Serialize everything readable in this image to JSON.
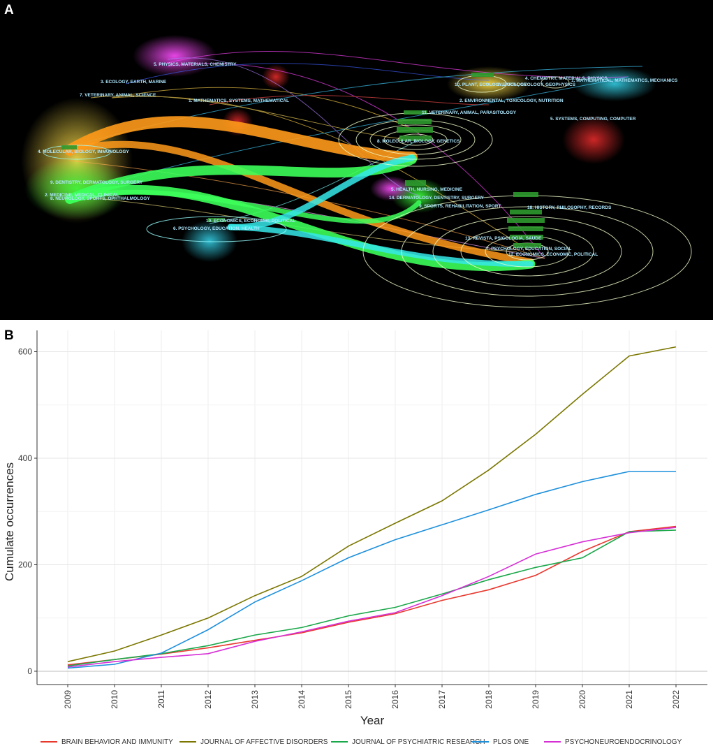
{
  "panel_a": {
    "letter": "A",
    "labels": [
      {
        "text": "5. PHYSICS, MATERIALS, CHEMISTRY",
        "color": "#aee8ff"
      },
      {
        "text": "3. ECOLOGY, EARTH, MARINE",
        "color": "#aee8ff"
      },
      {
        "text": "7. VETERINARY, ANIMAL, SCIENCE",
        "color": "#aee8ff"
      },
      {
        "text": "1. MATHEMATICS, SYSTEMS, MATHEMATICAL",
        "color": "#aee8ff"
      },
      {
        "text": "4. MOLECULAR, BIOLOGY, IMMUNOLOGY",
        "color": "#aee8ff"
      },
      {
        "text": "9. DENTISTRY, DERMATOLOGY, SURGERY",
        "color": "#aee8ff"
      },
      {
        "text": "2. MEDICINE, MEDICAL, CLINICAL",
        "color": "#aee8ff"
      },
      {
        "text": "8. NEUROLOGY, SPORTS, OPHTHALMOLOGY",
        "color": "#aee8ff"
      },
      {
        "text": "10. ECONOMICS, ECONOMIC, POLITICAL",
        "color": "#aee8ff"
      },
      {
        "text": "6. PSYCHOLOGY, EDUCATION, HEALTH",
        "color": "#aee8ff"
      },
      {
        "text": "4. CHEMISTRY, MATERIALS, PHYSICS",
        "color": "#aee8ff"
      },
      {
        "text": "10. PLANT, ECOLOGY, ZOOLOGY",
        "color": "#aee8ff"
      },
      {
        "text": "3. EARTH, GEOLOGY, GEOPHYSICS",
        "color": "#aee8ff"
      },
      {
        "text": "1. MATHEMATICAL, MATHEMATICS, MECHANICS",
        "color": "#aee8ff"
      },
      {
        "text": "2. ENVIRONMENTAL, TOXICOLOGY, NUTRITION",
        "color": "#aee8ff"
      },
      {
        "text": "11. VETERINARY, ANIMAL, PARASITOLOGY",
        "color": "#aee8ff"
      },
      {
        "text": "8. MOLECULAR, BIOLOGY, GENETICS",
        "color": "#aee8ff"
      },
      {
        "text": "5. SYSTEMS, COMPUTING, COMPUTER",
        "color": "#aee8ff"
      },
      {
        "text": "5. HEALTH, NURSING, MEDICINE",
        "color": "#aee8ff"
      },
      {
        "text": "14. DERMATOLOGY, DENTISTRY, SURGERY",
        "color": "#aee8ff"
      },
      {
        "text": "9. SPORTS, REHABILITATION, SPORT",
        "color": "#aee8ff"
      },
      {
        "text": "18. HISTORY, PHILOSOPHY, RECORDS",
        "color": "#aee8ff"
      },
      {
        "text": "13. REVISTA, PSICOLOGIA, SAUDE",
        "color": "#aee8ff"
      },
      {
        "text": "7. PSYCHOLOGY, EDUCATION, SOCIAL",
        "color": "#aee8ff"
      },
      {
        "text": "12. ECONOMICS, ECONOMIC, POLITICAL",
        "color": "#aee8ff"
      }
    ]
  },
  "panel_b": {
    "letter": "B"
  },
  "chart_data": {
    "type": "line",
    "xlabel": "Year",
    "ylabel": "Cumulate occurrences",
    "x": [
      2009,
      2010,
      2011,
      2012,
      2013,
      2014,
      2015,
      2016,
      2017,
      2018,
      2019,
      2020,
      2021,
      2022
    ],
    "ylim": [
      -25,
      640
    ],
    "yticks": [
      0,
      200,
      400,
      600
    ],
    "grid": true,
    "legend_position": "bottom",
    "series": [
      {
        "name": "BRAIN BEHAVIOR AND IMMUNITY",
        "color": "#e8392f",
        "values": [
          12,
          22,
          32,
          44,
          58,
          72,
          92,
          108,
          133,
          153,
          180,
          225,
          262,
          272
        ]
      },
      {
        "name": "JOURNAL OF AFFECTIVE DISORDERS",
        "color": "#7b7700",
        "values": [
          18,
          38,
          68,
          100,
          142,
          178,
          235,
          278,
          320,
          378,
          445,
          520,
          592,
          609
        ]
      },
      {
        "name": "JOURNAL OF PSYCHIATRIC RESEARCH",
        "color": "#1aa84a",
        "values": [
          10,
          22,
          33,
          48,
          68,
          82,
          104,
          120,
          145,
          172,
          195,
          213,
          262,
          265
        ]
      },
      {
        "name": "PLOS ONE",
        "color": "#1e90dc",
        "values": [
          6,
          13,
          34,
          78,
          130,
          170,
          213,
          247,
          275,
          303,
          332,
          356,
          375,
          375
        ]
      },
      {
        "name": "PSYCHONEUROENDOCRINOLOGY",
        "color": "#d62fd6",
        "values": [
          8,
          18,
          26,
          33,
          56,
          74,
          94,
          110,
          142,
          178,
          220,
          243,
          260,
          270
        ]
      }
    ]
  }
}
